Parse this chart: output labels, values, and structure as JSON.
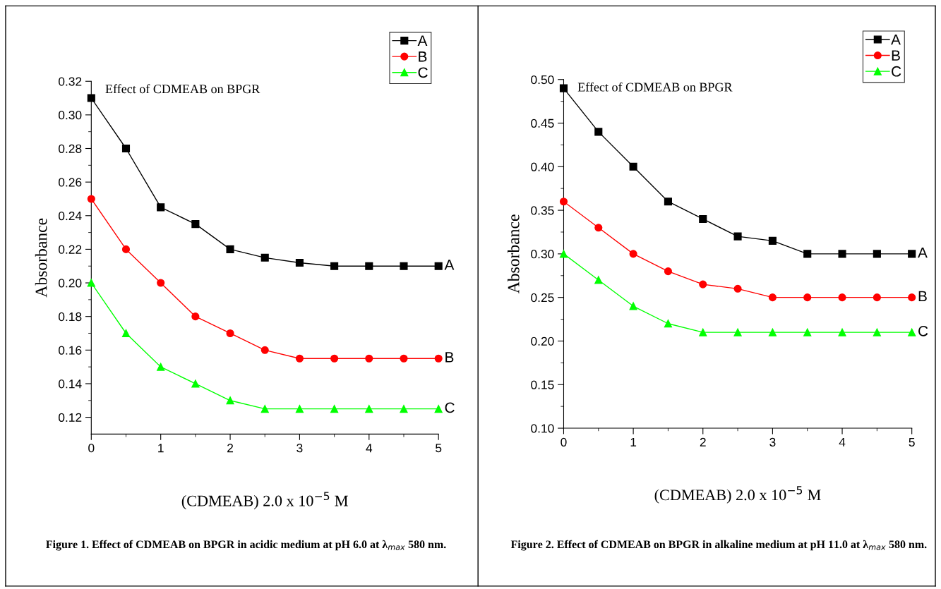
{
  "chart_data": [
    {
      "type": "line",
      "subtitle": "Effect of CDMEAB on BPGR",
      "title": "Figure 1. Effect of CDMEAB on BPGR in acidic medium at pH 6.0 at λ$_{max}$ 580 nm.",
      "xlabel": "(CDMEAB) 2.0 x 10$^{−5}$ M",
      "ylabel": "Absorbance",
      "x": [
        0,
        0.5,
        1,
        1.5,
        2,
        2.5,
        3,
        3.5,
        4,
        4.5,
        5
      ],
      "series": [
        {
          "name": "A",
          "color": "#000000",
          "marker": "square",
          "values": [
            0.31,
            0.28,
            0.245,
            0.235,
            0.22,
            0.215,
            0.212,
            0.21,
            0.21,
            0.21,
            0.21
          ]
        },
        {
          "name": "B",
          "color": "#ff0000",
          "marker": "circle",
          "values": [
            0.25,
            0.22,
            0.2,
            0.18,
            0.17,
            0.16,
            0.155,
            0.155,
            0.155,
            0.155,
            0.155
          ]
        },
        {
          "name": "C",
          "color": "#00ff00",
          "marker": "triangle",
          "values": [
            0.2,
            0.17,
            0.15,
            0.14,
            0.13,
            0.125,
            0.125,
            0.125,
            0.125,
            0.125,
            0.125
          ]
        }
      ],
      "xlim": [
        0,
        5
      ],
      "xticks": [
        0,
        1,
        2,
        3,
        4,
        5
      ],
      "ylim": [
        0.11,
        0.32
      ],
      "yticks": [
        {
          "value": 0.12,
          "label": "0.12"
        },
        {
          "value": 0.14,
          "label": "0.14"
        },
        {
          "value": 0.16,
          "label": "0.16"
        },
        {
          "value": 0.18,
          "label": "0.18"
        },
        {
          "value": 0.2,
          "label": "0.20"
        },
        {
          "value": 0.22,
          "label": "0.22"
        },
        {
          "value": 0.24,
          "label": "0.24"
        },
        {
          "value": 0.26,
          "label": "0.26"
        },
        {
          "value": 0.28,
          "label": "0.28"
        },
        {
          "value": 0.3,
          "label": "0.30"
        },
        {
          "value": 0.32,
          "label": "0.32"
        }
      ],
      "legend": "top right",
      "grid": false
    },
    {
      "type": "line",
      "subtitle": "Effect of CDMEAB on BPGR",
      "title": "Figure 2. Effect of CDMEAB on BPGR in alkaline medium at pH 11.0 at λ$_{max}$ 580 nm.",
      "xlabel": "(CDMEAB) 2.0 x 10$^{−5}$ M",
      "ylabel": "Absorbance",
      "x": [
        0,
        0.5,
        1,
        1.5,
        2,
        2.5,
        3,
        3.5,
        4,
        4.5,
        5
      ],
      "series": [
        {
          "name": "A",
          "color": "#000000",
          "marker": "square",
          "values": [
            0.49,
            0.44,
            0.4,
            0.36,
            0.34,
            0.32,
            0.315,
            0.3,
            0.3,
            0.3,
            0.3
          ]
        },
        {
          "name": "B",
          "color": "#ff0000",
          "marker": "circle",
          "values": [
            0.36,
            0.33,
            0.3,
            0.28,
            0.265,
            0.26,
            0.25,
            0.25,
            0.25,
            0.25,
            0.25
          ]
        },
        {
          "name": "C",
          "color": "#00ff00",
          "marker": "triangle",
          "values": [
            0.3,
            0.27,
            0.24,
            0.22,
            0.21,
            0.21,
            0.21,
            0.21,
            0.21,
            0.21,
            0.21
          ]
        }
      ],
      "xlim": [
        0,
        5
      ],
      "xticks": [
        0,
        1,
        2,
        3,
        4,
        5
      ],
      "ylim": [
        0.1,
        0.5
      ],
      "yticks": [
        {
          "value": 0.1,
          "label": "0.10"
        },
        {
          "value": 0.15,
          "label": "0.15"
        },
        {
          "value": 0.2,
          "label": "0.20"
        },
        {
          "value": 0.25,
          "label": "0.25"
        },
        {
          "value": 0.3,
          "label": "0.30"
        },
        {
          "value": 0.35,
          "label": "0.35"
        },
        {
          "value": 0.4,
          "label": "0.40"
        },
        {
          "value": 0.45,
          "label": "0.45"
        },
        {
          "value": 0.5,
          "label": "0.50"
        }
      ],
      "legend": "top right",
      "grid": false
    }
  ]
}
